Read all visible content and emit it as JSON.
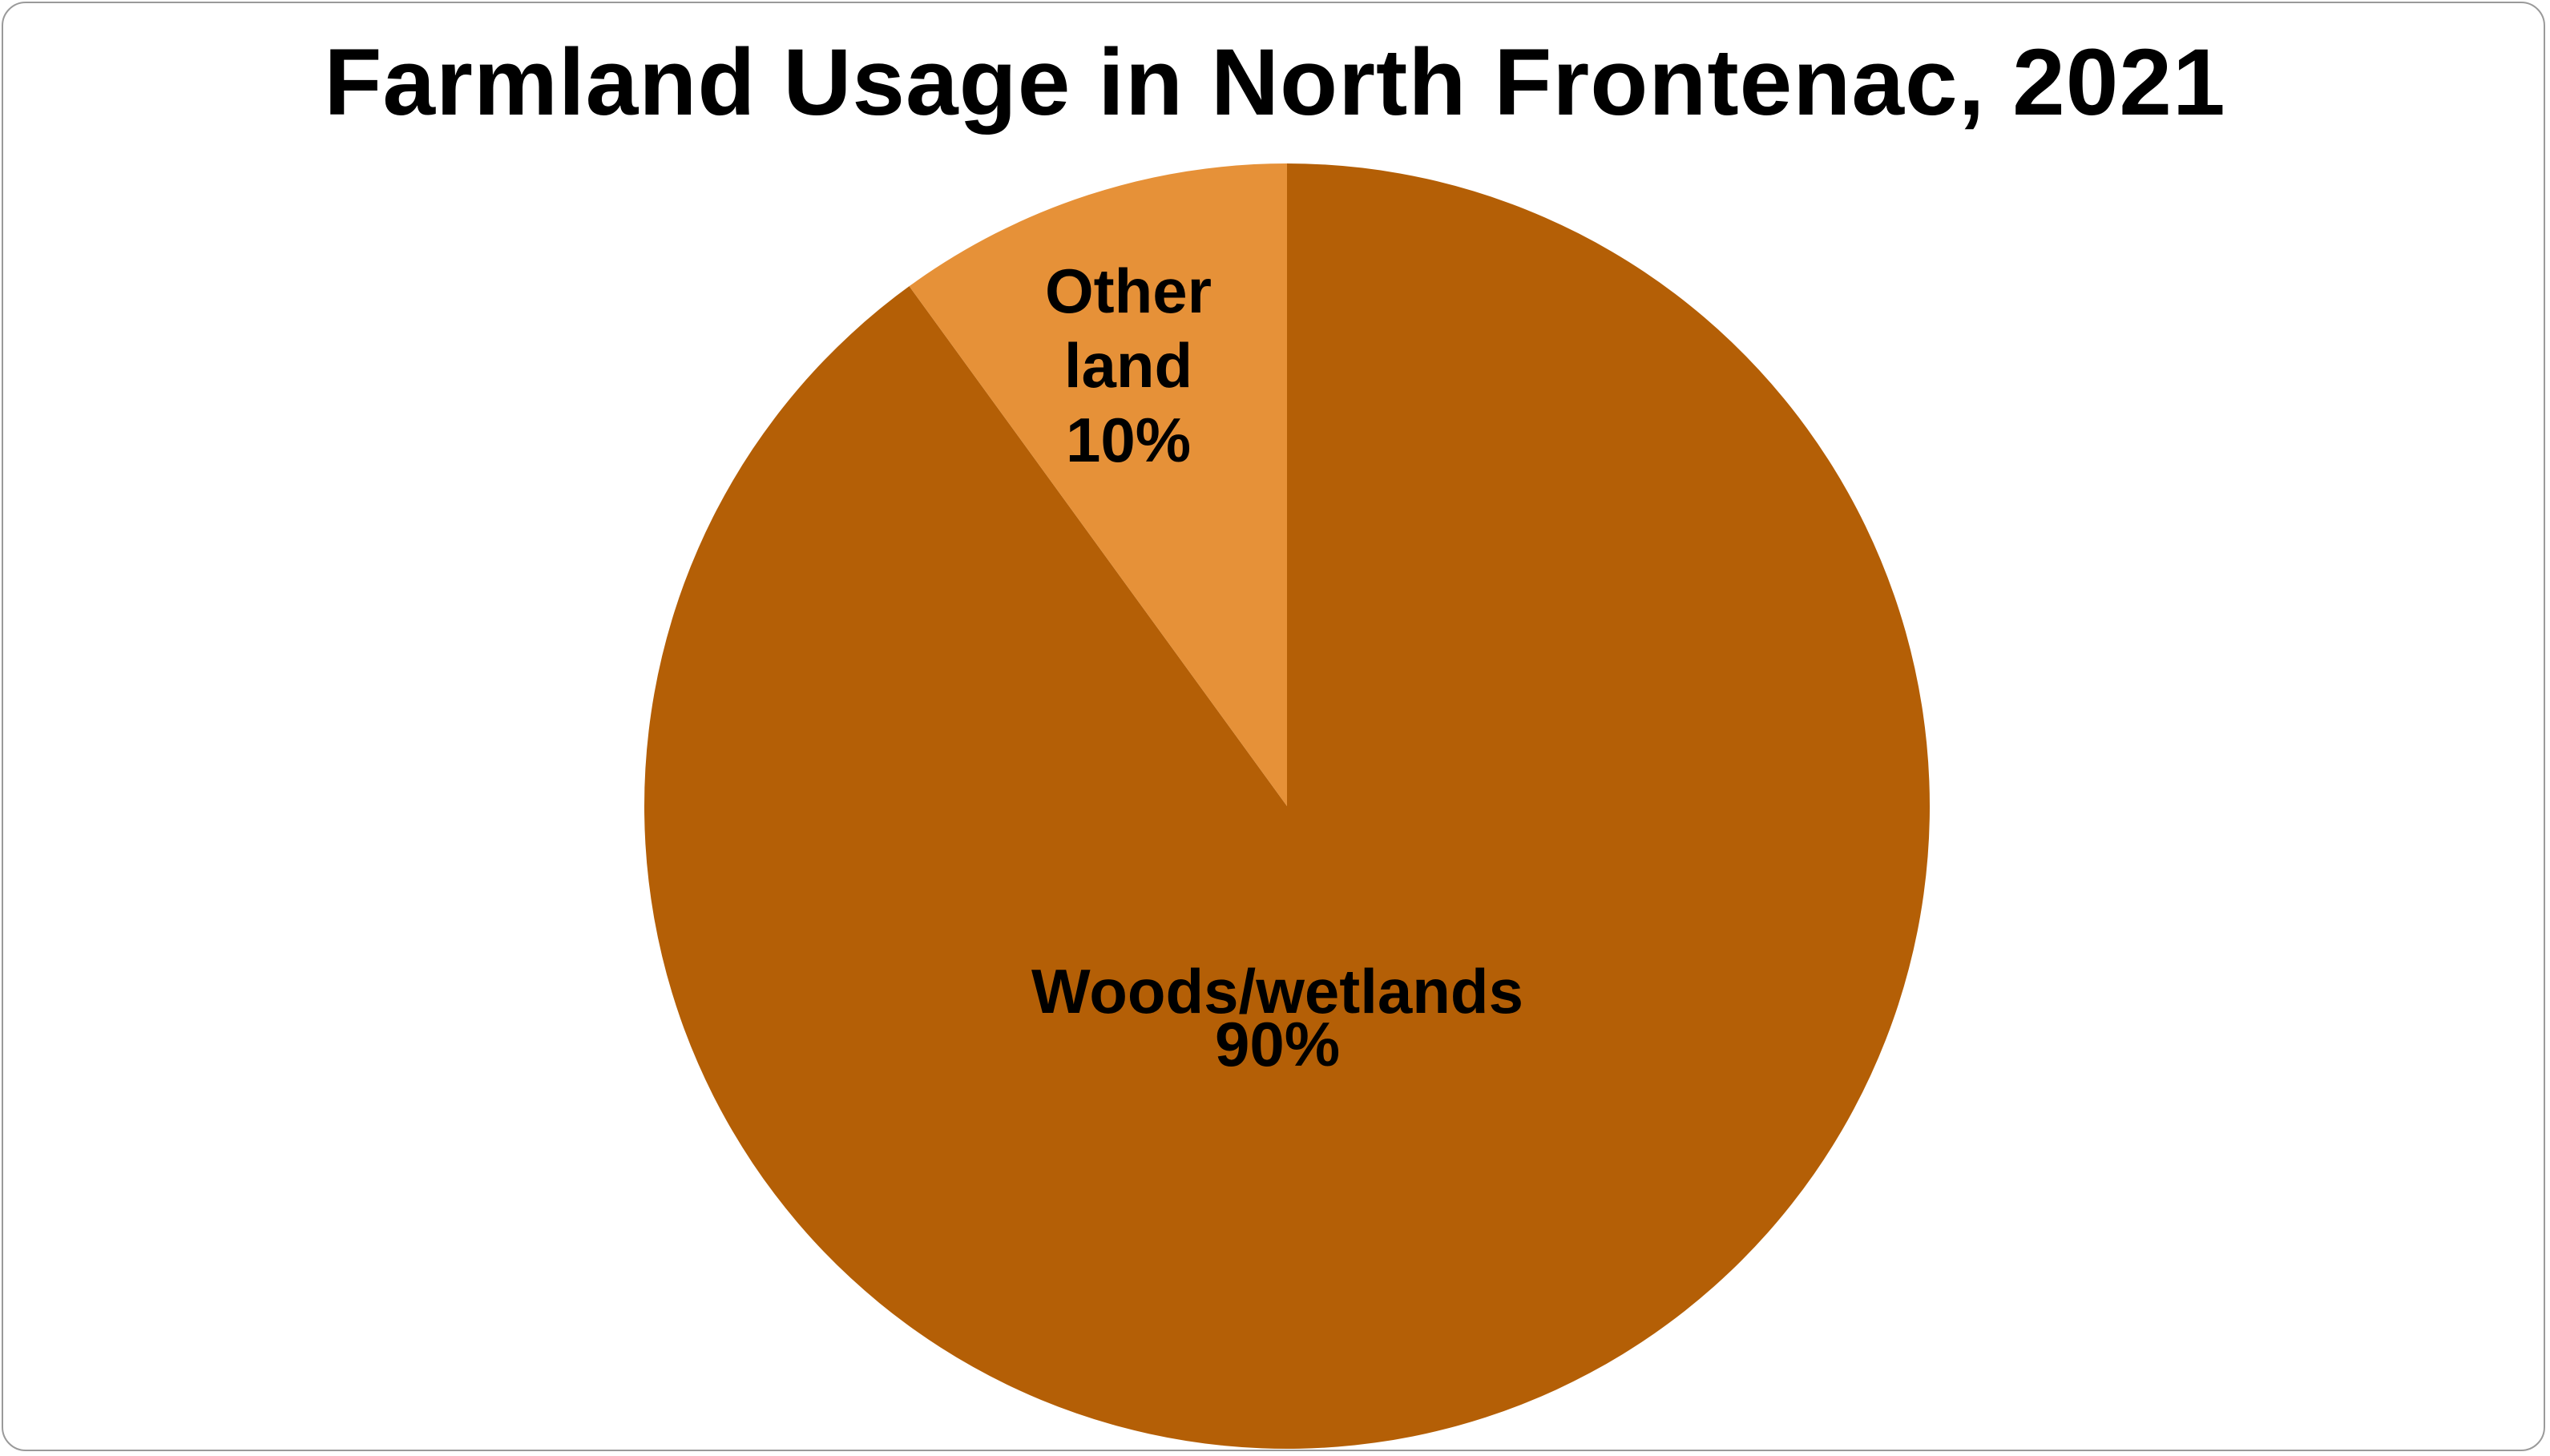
{
  "chart_data": {
    "type": "pie",
    "title": "Farmland Usage in North Frontenac, 2021",
    "slices": [
      {
        "label": "Woods/wetlands",
        "value": 90,
        "percent_label": "90%",
        "color": "#B45F06"
      },
      {
        "label": "Other land",
        "value": 10,
        "percent_label": "10%",
        "color": "#E69138"
      }
    ],
    "start": "12 o'clock",
    "direction": "clockwise",
    "legend": "none",
    "data_labels": "inside"
  }
}
